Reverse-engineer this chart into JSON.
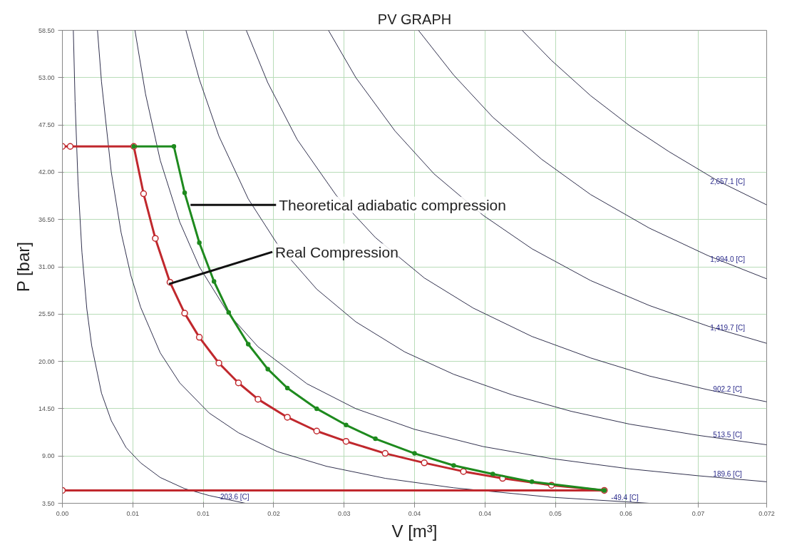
{
  "chart_data": {
    "type": "line",
    "title": "PV GRAPH",
    "xlabel": "V [m³]",
    "ylabel": "P [bar]",
    "xlim": [
      0,
      0.072
    ],
    "ylim": [
      3.5,
      58.5
    ],
    "xticks": [
      {
        "value": 0,
        "label": "0.00"
      },
      {
        "value": 0.0072,
        "label": "0.01"
      },
      {
        "value": 0.0144,
        "label": "0.01"
      },
      {
        "value": 0.0216,
        "label": "0.02"
      },
      {
        "value": 0.0288,
        "label": "0.03"
      },
      {
        "value": 0.036,
        "label": "0.04"
      },
      {
        "value": 0.0432,
        "label": "0.04"
      },
      {
        "value": 0.0504,
        "label": "0.05"
      },
      {
        "value": 0.0576,
        "label": "0.06"
      },
      {
        "value": 0.065,
        "label": "0.07"
      },
      0.072
    ],
    "yticks": [
      {
        "value": 3.5,
        "label": "3.50"
      },
      {
        "value": 9,
        "label": "9.00"
      },
      {
        "value": 14.5,
        "label": "14.50"
      },
      {
        "value": 20,
        "label": "20.00"
      },
      {
        "value": 25.5,
        "label": "25.50"
      },
      {
        "value": 31,
        "label": "31.00"
      },
      {
        "value": 36.5,
        "label": "36.50"
      },
      {
        "value": 42,
        "label": "42.00"
      },
      {
        "value": 47.5,
        "label": "47.50"
      },
      {
        "value": 53,
        "label": "53.00"
      },
      {
        "value": 58.5,
        "label": "58.50"
      }
    ],
    "grid": true,
    "series": [
      {
        "color": "#1a1a3a",
        "marker": "none",
        "x": [
          0.00112,
          0.0013,
          0.0016,
          0.002,
          0.0025,
          0.003,
          0.004,
          0.005,
          0.0065,
          0.008,
          0.01,
          0.0125,
          0.015,
          0.0187
        ],
        "values": [
          58.5,
          50.2,
          40.8,
          32.7,
          26.1,
          21.8,
          16.3,
          13.1,
          10.0,
          8.2,
          6.5,
          5.2,
          4.4,
          3.5
        ]
      },
      {
        "color": "#1a1a3a",
        "marker": "none",
        "x": [
          0.00359,
          0.004,
          0.005,
          0.006,
          0.007,
          0.008,
          0.01,
          0.012,
          0.015,
          0.018,
          0.022,
          0.027,
          0.033,
          0.04,
          0.05,
          0.06
        ],
        "values": [
          58.5,
          52.5,
          42.0,
          35.0,
          30.0,
          26.3,
          21.0,
          17.5,
          14.0,
          11.7,
          9.5,
          7.8,
          6.4,
          5.3,
          4.2,
          3.5
        ]
      },
      {
        "color": "#1a1a3a",
        "marker": "none",
        "x": [
          0.00742,
          0.0085,
          0.01,
          0.012,
          0.014,
          0.017,
          0.02,
          0.025,
          0.03,
          0.036,
          0.043,
          0.05,
          0.058,
          0.065,
          0.072
        ],
        "values": [
          58.5,
          51.1,
          43.4,
          36.2,
          31.0,
          25.5,
          21.7,
          17.4,
          14.5,
          12.1,
          10.1,
          8.7,
          7.5,
          6.7,
          6.0
        ]
      },
      {
        "color": "#1a1a3a",
        "marker": "none",
        "x": [
          0.01263,
          0.014,
          0.016,
          0.019,
          0.022,
          0.026,
          0.03,
          0.035,
          0.04,
          0.046,
          0.052,
          0.058,
          0.065,
          0.072
        ],
        "values": [
          58.5,
          52.8,
          46.2,
          38.9,
          33.6,
          28.4,
          24.6,
          21.1,
          18.5,
          16.1,
          14.2,
          12.7,
          11.4,
          10.3
        ]
      },
      {
        "color": "#1a1a3a",
        "marker": "none",
        "x": [
          0.0188,
          0.021,
          0.024,
          0.028,
          0.032,
          0.037,
          0.042,
          0.048,
          0.054,
          0.06,
          0.066,
          0.072
        ],
        "values": [
          58.5,
          52.4,
          45.8,
          39.3,
          34.4,
          29.7,
          26.2,
          22.9,
          20.4,
          18.3,
          16.7,
          15.3
        ]
      },
      {
        "color": "#1a1a3a",
        "marker": "none",
        "x": [
          0.0272,
          0.03,
          0.034,
          0.038,
          0.043,
          0.048,
          0.054,
          0.06,
          0.066,
          0.072
        ],
        "values": [
          58.5,
          53.0,
          46.8,
          41.8,
          37.0,
          33.1,
          29.4,
          26.5,
          24.1,
          22.1
        ]
      },
      {
        "color": "#1a1a3a",
        "marker": "none",
        "x": [
          0.0364,
          0.04,
          0.044,
          0.049,
          0.054,
          0.06,
          0.066,
          0.072
        ],
        "values": [
          58.5,
          53.3,
          48.4,
          43.5,
          39.4,
          35.5,
          32.3,
          29.6
        ]
      },
      {
        "color": "#1a1a3a",
        "marker": "none",
        "x": [
          0.047,
          0.05,
          0.054,
          0.058,
          0.062,
          0.067,
          0.072
        ],
        "values": [
          58.5,
          55.0,
          50.9,
          47.4,
          44.4,
          41.0,
          38.2
        ]
      },
      {
        "color": "#c0282d",
        "marker": "circle",
        "x": [
          0,
          0.0008,
          0.0073,
          0.0083,
          0.0095,
          0.011,
          0.0125,
          0.014,
          0.016,
          0.018,
          0.02,
          0.023,
          0.026,
          0.029,
          0.033,
          0.037,
          0.041,
          0.045,
          0.05,
          0.0554,
          0
        ],
        "values": [
          45,
          45,
          45,
          39.5,
          34.3,
          29.2,
          25.6,
          22.8,
          19.8,
          17.5,
          15.6,
          13.5,
          11.9,
          10.7,
          9.3,
          8.2,
          7.2,
          6.4,
          5.6,
          5.0,
          5.0
        ]
      },
      {
        "color": "#1e8a1e",
        "marker": "circle",
        "x": [
          0.0073,
          0.0114,
          0.0125,
          0.014,
          0.0155,
          0.017,
          0.019,
          0.021,
          0.023,
          0.026,
          0.029,
          0.032,
          0.036,
          0.04,
          0.044,
          0.048,
          0.0554
        ],
        "values": [
          45,
          45,
          39.6,
          33.8,
          29.3,
          25.7,
          22.0,
          19.1,
          16.9,
          14.5,
          12.6,
          11.0,
          9.3,
          7.9,
          6.9,
          6.0,
          5.0
        ]
      }
    ],
    "annotations": [
      {
        "text": "Theoretical adiabatic compression",
        "x": 0.0131,
        "y": 38.2
      },
      {
        "text": "Real Compression",
        "x": 0.0109,
        "y": 29.0
      },
      {
        "text": "2,657.1 [C]",
        "x": 0.068,
        "y": 40.4
      },
      {
        "text": "1,994.0 [C]",
        "x": 0.068,
        "y": 31.3
      },
      {
        "text": "1,419.7 [C]",
        "x": 0.068,
        "y": 23.4
      },
      {
        "text": "902.2 [C]",
        "x": 0.068,
        "y": 16.2
      },
      {
        "text": "513.5 [C]",
        "x": 0.068,
        "y": 10.9
      },
      {
        "text": "189.6 [C]",
        "x": 0.068,
        "y": 6.4
      },
      {
        "text": "-49.4 [C]",
        "x": 0.0575,
        "y": 3.65
      },
      {
        "text": "-203.6 [C]",
        "x": 0.0175,
        "y": 3.73
      }
    ]
  }
}
